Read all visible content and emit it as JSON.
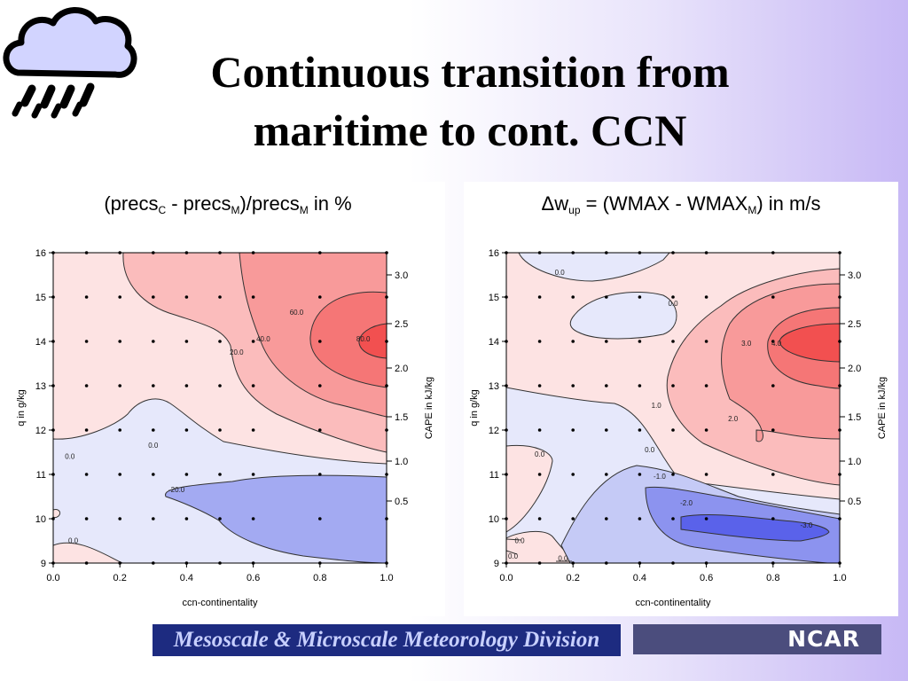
{
  "slide": {
    "title_line1": "Continuous transition from",
    "title_line2": "maritime to cont. CCN"
  },
  "icons": {
    "weather": "rain-cloud-icon"
  },
  "footer": {
    "division": "Mesoscale & Microscale Meteorology Division",
    "org": "NCAR"
  },
  "colors": {
    "positive": "#f25050",
    "negative": "#4f5ae8",
    "neutral": "#f0f0ff"
  },
  "chart_data": [
    {
      "type": "heatmap",
      "title": {
        "p1": "(precs",
        "s1": "C",
        "p2": " - precs",
        "s2": "M",
        "p3": ")/precs",
        "s3": "M",
        "p4": " in %"
      },
      "xlabel": "ccn-continentality",
      "ylabel": "q  in  g/kg",
      "y2label": "CAPE  in  kJ/kg",
      "xlim": [
        0,
        1
      ],
      "ylim": [
        9,
        16
      ],
      "x_ticks": [
        "0.0",
        "0.2",
        "0.4",
        "0.6",
        "0.8",
        "1.0"
      ],
      "y_ticks": [
        "9",
        "10",
        "11",
        "12",
        "13",
        "14",
        "15",
        "16"
      ],
      "y2_ticks": [
        {
          "q": 10.4,
          "label": "0.5"
        },
        {
          "q": 11.3,
          "label": "1.0"
        },
        {
          "q": 12.3,
          "label": "1.5"
        },
        {
          "q": 13.4,
          "label": "2.0"
        },
        {
          "q": 14.4,
          "label": "2.5"
        },
        {
          "q": 15.5,
          "label": "3.0"
        }
      ],
      "contour_labels": [
        {
          "x": 0.05,
          "y": 11.35,
          "text": "0.0"
        },
        {
          "x": 0.3,
          "y": 11.6,
          "text": "0.0"
        },
        {
          "x": 0.06,
          "y": 9.45,
          "text": "0.0"
        },
        {
          "x": 0.55,
          "y": 13.7,
          "text": "20.0"
        },
        {
          "x": 0.63,
          "y": 14.0,
          "text": "40.0"
        },
        {
          "x": 0.73,
          "y": 14.6,
          "text": "60.0"
        },
        {
          "x": 0.93,
          "y": 14.0,
          "text": "80.0"
        },
        {
          "x": 0.37,
          "y": 10.6,
          "text": "-20.0"
        }
      ],
      "regions": [
        {
          "level": "0 to 20",
          "color": "#fde3e3"
        },
        {
          "level": "20 to 40",
          "color": "#fbbcbc"
        },
        {
          "level": "40 to 60",
          "color": "#f89a9a"
        },
        {
          "level": "60 to 80",
          "color": "#f57676"
        },
        {
          "level": ">80",
          "color": "#f25050"
        },
        {
          "level": "-20 to 0",
          "color": "#e6e8fb"
        },
        {
          "level": "<-20",
          "color": "#a3aaf2"
        }
      ]
    },
    {
      "type": "heatmap",
      "title": {
        "p1": "Δw",
        "s1": "up",
        "p2": " = (WMAX - WMAX",
        "s2": "M",
        "p3": ")  in  m/s",
        "s3": "",
        "p4": ""
      },
      "xlabel": "ccn-continentality",
      "ylabel": "q  in  g/kg",
      "y2label": "CAPE  in  kJ/kg",
      "xlim": [
        0,
        1
      ],
      "ylim": [
        9,
        16
      ],
      "x_ticks": [
        "0.0",
        "0.2",
        "0.4",
        "0.6",
        "0.8",
        "1.0"
      ],
      "y_ticks": [
        "9",
        "10",
        "11",
        "12",
        "13",
        "14",
        "15",
        "16"
      ],
      "y2_ticks": [
        {
          "q": 10.4,
          "label": "0.5"
        },
        {
          "q": 11.3,
          "label": "1.0"
        },
        {
          "q": 12.3,
          "label": "1.5"
        },
        {
          "q": 13.4,
          "label": "2.0"
        },
        {
          "q": 14.4,
          "label": "2.5"
        },
        {
          "q": 15.5,
          "label": "3.0"
        }
      ],
      "contour_labels": [
        {
          "x": 0.16,
          "y": 15.5,
          "text": "0.0"
        },
        {
          "x": 0.5,
          "y": 14.8,
          "text": "0.0"
        },
        {
          "x": 0.1,
          "y": 11.4,
          "text": "0.0"
        },
        {
          "x": 0.43,
          "y": 11.5,
          "text": "0.0"
        },
        {
          "x": 0.45,
          "y": 12.5,
          "text": "1.0"
        },
        {
          "x": 0.68,
          "y": 12.2,
          "text": "2.0"
        },
        {
          "x": 0.72,
          "y": 13.9,
          "text": "3.0"
        },
        {
          "x": 0.81,
          "y": 13.9,
          "text": "4.0"
        },
        {
          "x": 0.46,
          "y": 10.9,
          "text": "-1.0"
        },
        {
          "x": 0.54,
          "y": 10.3,
          "text": "-2.0"
        },
        {
          "x": 0.9,
          "y": 9.8,
          "text": "-3.0"
        },
        {
          "x": 0.04,
          "y": 9.45,
          "text": "0.0"
        },
        {
          "x": 0.02,
          "y": 9.1,
          "text": "0.0"
        },
        {
          "x": 0.17,
          "y": 9.05,
          "text": "0.0"
        }
      ],
      "regions": [
        {
          "level": "0 to 1",
          "color": "#fde3e3"
        },
        {
          "level": "1 to 2",
          "color": "#fbbcbc"
        },
        {
          "level": "2 to 3",
          "color": "#f89a9a"
        },
        {
          "level": "3 to 4",
          "color": "#f57676"
        },
        {
          "level": ">4",
          "color": "#f25050"
        },
        {
          "level": "-1 to 0",
          "color": "#e6e8fb"
        },
        {
          "level": "-2 to -1",
          "color": "#c5caf6"
        },
        {
          "level": "-3 to -2",
          "color": "#8c93ef"
        },
        {
          "level": "<-3",
          "color": "#5a62ea"
        }
      ]
    }
  ]
}
